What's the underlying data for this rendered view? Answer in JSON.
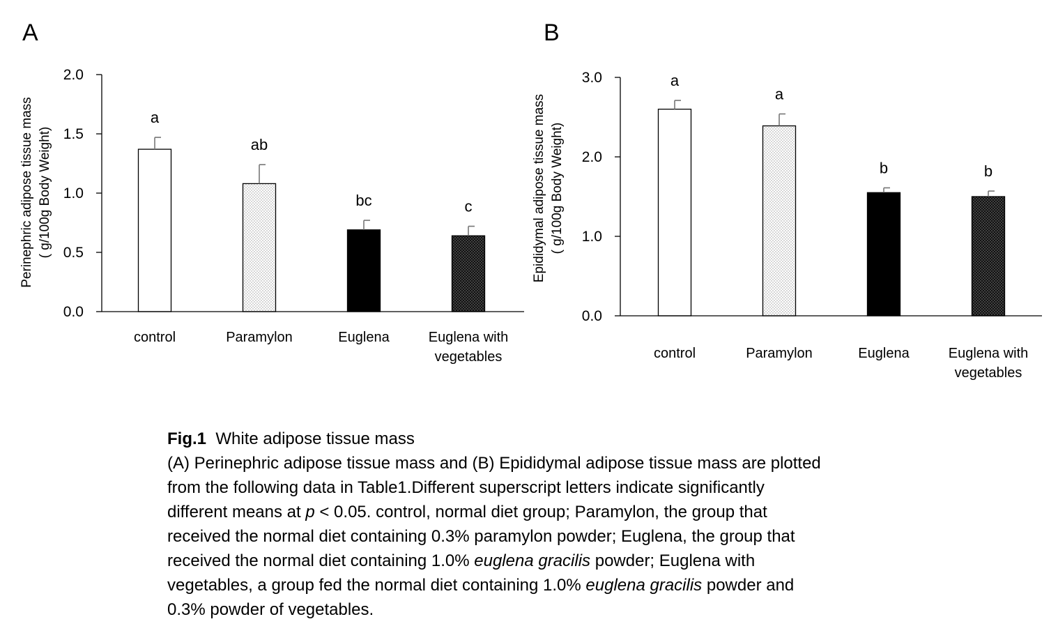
{
  "chart_data": [
    {
      "panel": "A",
      "type": "bar",
      "ylabel_lines": [
        "Perinephric  adipose tissue mass",
        "( g/100g Body Weight)"
      ],
      "ylim": [
        0,
        2.0
      ],
      "yticks": [
        "0.0",
        "0.5",
        "1.0",
        "1.5",
        "2.0"
      ],
      "categories": [
        [
          "control"
        ],
        [
          "Paramylon"
        ],
        [
          "Euglena"
        ],
        [
          "Euglena with",
          "vegetables"
        ]
      ],
      "values": [
        1.37,
        1.08,
        0.69,
        0.64
      ],
      "errors": [
        0.1,
        0.16,
        0.08,
        0.08
      ],
      "significance": [
        "a",
        "ab",
        "bc",
        "c"
      ],
      "fills": [
        "white",
        "dots-light",
        "black",
        "dots-dark"
      ],
      "grid": false
    },
    {
      "panel": "B",
      "type": "bar",
      "ylabel_lines": [
        "Epididymal adipose tissue mass",
        "( g/100g Body Weight)"
      ],
      "ylim": [
        0,
        3.0
      ],
      "yticks": [
        "0.0",
        "1.0",
        "2.0",
        "3.0"
      ],
      "categories": [
        [
          "control"
        ],
        [
          "Paramylon"
        ],
        [
          "Euglena"
        ],
        [
          "Euglena with",
          "vegetables"
        ]
      ],
      "values": [
        2.6,
        2.39,
        1.55,
        1.5
      ],
      "errors": [
        0.11,
        0.15,
        0.06,
        0.07
      ],
      "significance": [
        "a",
        "a",
        "b",
        "b"
      ],
      "fills": [
        "white",
        "dots-light",
        "black",
        "dots-dark"
      ],
      "grid": false
    }
  ],
  "caption": {
    "title": "Fig.1",
    "subtitle": "White adipose tissue mass",
    "lines": [
      [
        "(A) Perinephric adipose tissue mass and (B) Epididymal adipose tissue mass are plotted"
      ],
      [
        "from the following data in Table1.Different superscript letters indicate significantly"
      ],
      [
        "different means at ",
        "p",
        " < 0.05. control, normal diet group; Paramylon, the group that"
      ],
      [
        "received the normal diet containing 0.3% paramylon powder; Euglena, the group that"
      ],
      [
        "received the normal diet containing 1.0% ",
        "euglena gracilis",
        " powder;  Euglena with"
      ],
      [
        "vegetables, a group fed the normal diet containing 1.0% ",
        "euglena gracilis",
        " powder and"
      ],
      [
        "0.3% powder of vegetables."
      ]
    ]
  }
}
